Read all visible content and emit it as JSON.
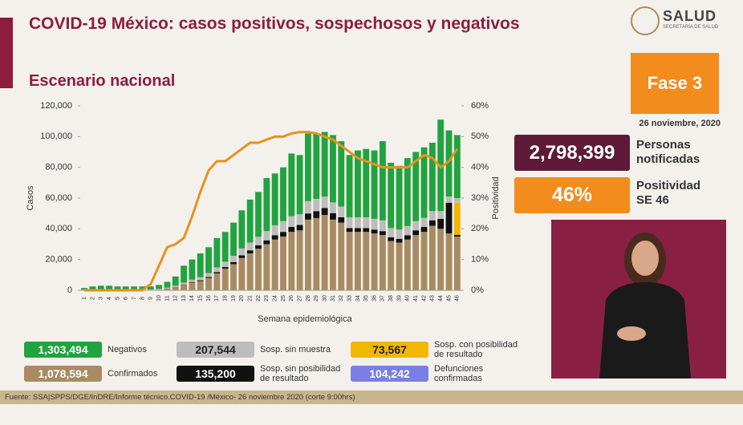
{
  "header": {
    "title": "COVID-19 México: casos positivos, sospechosos y negativos",
    "subtitle": "Escenario nacional",
    "logo": "SALUD",
    "logo_sub": "SECRETARÍA DE SALUD"
  },
  "panel": {
    "phase": "Fase 3",
    "date": "26 noviembre, 2020",
    "notified_value": "2,798,399",
    "notified_label": "Personas notificadas",
    "positivity_value": "46%",
    "positivity_label": "Positividad SE 46"
  },
  "chart_data": {
    "type": "bar",
    "stacked": true,
    "x_label": "Semana epidemiológica",
    "y_label": "Casos",
    "y2_label": "Positividad",
    "categories": [
      "1",
      "2",
      "3",
      "4",
      "5",
      "6",
      "7",
      "8",
      "9",
      "10",
      "11",
      "12",
      "13",
      "14",
      "15",
      "16",
      "17",
      "18",
      "19",
      "20",
      "21",
      "22",
      "23",
      "24",
      "25",
      "26",
      "27",
      "28",
      "29",
      "30",
      "31",
      "32",
      "33",
      "34",
      "35",
      "36",
      "37",
      "38",
      "39",
      "40",
      "41",
      "42",
      "43",
      "44",
      "45",
      "46"
    ],
    "ylim": [
      0,
      120000
    ],
    "yticks": [
      0,
      {
        "value": 20000,
        "label": "20,000"
      },
      {
        "value": 40000,
        "label": "40,000"
      },
      {
        "value": 60000,
        "label": "60,000"
      },
      {
        "value": 80000,
        "label": "80,000"
      },
      {
        "value": 100000,
        "label": "100,000"
      },
      {
        "value": 120000,
        "label": "120,000"
      }
    ],
    "y2lim": [
      0,
      60
    ],
    "y2ticks": [
      {
        "value": 0,
        "label": "0%"
      },
      {
        "value": 10,
        "label": "10%"
      },
      {
        "value": 20,
        "label": "20%"
      },
      {
        "value": 30,
        "label": "30%"
      },
      {
        "value": 40,
        "label": "40%"
      },
      {
        "value": 50,
        "label": "50%"
      },
      {
        "value": 60,
        "label": "60%"
      }
    ],
    "series": [
      {
        "name": "Confirmados",
        "total": "1,078,594",
        "color": "#a88b63",
        "text_color": "#ffffff",
        "values": [
          0,
          0,
          0,
          0,
          0,
          0,
          0,
          0,
          100,
          400,
          1000,
          2000,
          3500,
          5000,
          6000,
          8000,
          11000,
          14000,
          17000,
          21000,
          24000,
          27000,
          30000,
          33000,
          35000,
          38000,
          39000,
          46000,
          47000,
          49000,
          46000,
          44000,
          38000,
          38000,
          38000,
          37000,
          36000,
          32000,
          31000,
          33000,
          36000,
          38000,
          42000,
          40000,
          37000,
          35000
        ]
      },
      {
        "name": "Sosp. sin posibilidad de resultado",
        "total": "135,200",
        "color": "#111111",
        "text_color": "#ffffff",
        "values": [
          0,
          0,
          0,
          0,
          0,
          0,
          0,
          0,
          0,
          0,
          100,
          200,
          300,
          400,
          500,
          700,
          900,
          1100,
          1400,
          1700,
          2000,
          2300,
          2500,
          2800,
          3000,
          3200,
          3500,
          4000,
          4500,
          4500,
          4200,
          3500,
          2500,
          2500,
          2500,
          2500,
          2500,
          2500,
          2500,
          2800,
          3000,
          3200,
          3500,
          6500,
          20000,
          1000
        ]
      },
      {
        "name": "Sosp. con posibilidad de resultado",
        "total": "73,567",
        "color": "#f2b705",
        "text_color": "#222222",
        "values": [
          0,
          0,
          0,
          0,
          0,
          0,
          0,
          0,
          0,
          0,
          0,
          0,
          0,
          0,
          0,
          0,
          0,
          0,
          0,
          0,
          0,
          0,
          0,
          0,
          0,
          0,
          0,
          0,
          0,
          0,
          0,
          0,
          0,
          0,
          0,
          0,
          0,
          0,
          0,
          0,
          0,
          0,
          0,
          0,
          0,
          21000
        ]
      },
      {
        "name": "Sosp. sin muestra",
        "total": "207,544",
        "color": "#bdbdbd",
        "text_color": "#222222",
        "values": [
          300,
          400,
          400,
          400,
          400,
          400,
          400,
          400,
          400,
          500,
          600,
          800,
          1200,
          1500,
          2000,
          2500,
          3000,
          3500,
          4000,
          4500,
          5000,
          5500,
          6000,
          6500,
          7000,
          7000,
          7000,
          8000,
          8000,
          7500,
          7000,
          7000,
          7000,
          7000,
          7000,
          7000,
          7000,
          6000,
          6000,
          6000,
          6000,
          6000,
          6000,
          5000,
          4000,
          3000
        ]
      },
      {
        "name": "Negativos",
        "total": "1,303,494",
        "color": "#21a33f",
        "text_color": "#ffffff",
        "values": [
          1200,
          2100,
          2600,
          2600,
          2100,
          2100,
          2100,
          2100,
          2000,
          2600,
          3800,
          6000,
          11000,
          13100,
          15500,
          16800,
          19100,
          19400,
          21600,
          24800,
          28000,
          29200,
          34500,
          33700,
          35000,
          40800,
          38500,
          44000,
          42500,
          42000,
          43800,
          42500,
          40500,
          43500,
          44500,
          44500,
          51500,
          42500,
          41500,
          44200,
          45000,
          45800,
          44500,
          59500,
          43000,
          41000
        ]
      },
      {
        "type": "line",
        "axis": "y2",
        "color": "#e8911c",
        "values": [
          0,
          0,
          0,
          0,
          0,
          0,
          0,
          0,
          2,
          8,
          14,
          15,
          17,
          24,
          32,
          39,
          42,
          42,
          44,
          46,
          48,
          48,
          49,
          50,
          50,
          51,
          51.5,
          51.5,
          51,
          50,
          49,
          47,
          45,
          43,
          42,
          41,
          40,
          40,
          40,
          40,
          42,
          44,
          43,
          40,
          42,
          46
        ]
      }
    ],
    "extra_legend": {
      "name": "Defunciones confirmadas",
      "total": "104,242",
      "color": "#7b7fe4",
      "text_color": "#ffffff"
    }
  },
  "footer": {
    "source": "Fuente: SSA|SPPS/DGE/InDRE/Informe técnico.COVID-19 /México- 26 noviembre 2020 (corte 9:00hrs)"
  }
}
